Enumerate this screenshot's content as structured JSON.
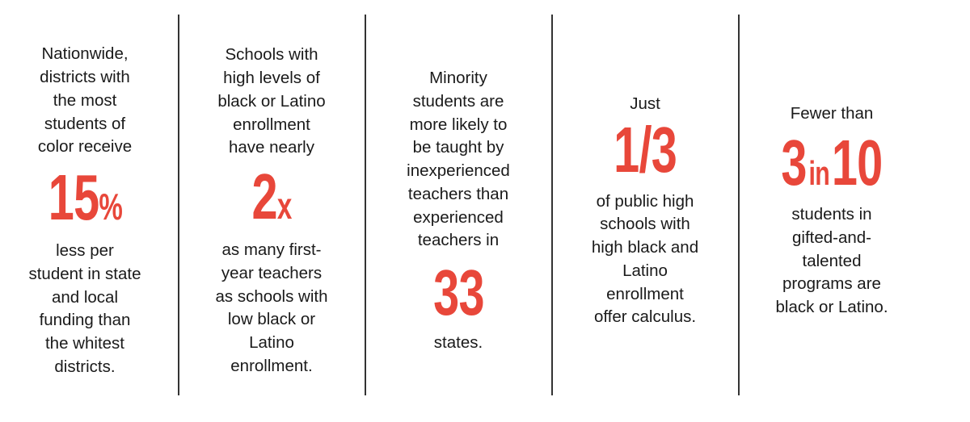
{
  "colors": {
    "accent": "#e8473a",
    "text": "#1a1a1a",
    "divider": "#333333"
  },
  "panels": [
    {
      "lead": "Nationwide,\ndistricts with\nthe most\nstudents of\ncolor receive",
      "stat": "15",
      "stat_suffix": "%",
      "follow": "less per\nstudent in state\nand local\nfunding than\nthe whitest\ndistricts."
    },
    {
      "lead": "Schools with\nhigh levels of\nblack or Latino\nenrollment\nhave nearly",
      "stat": "2",
      "stat_suffix": "x",
      "follow": "as many first-\nyear teachers\nas schools with\nlow black or\nLatino\nenrollment."
    },
    {
      "lead": "Minority\nstudents are\nmore likely to\nbe taught by\ninexperienced\nteachers than\nexperienced\nteachers in",
      "stat": "33",
      "follow": "states."
    },
    {
      "lead": "Just",
      "stat": "1/3",
      "follow": "of public high\nschools with\nhigh black and\nLatino\nenrollment\noffer calculus."
    },
    {
      "lead": "Fewer than",
      "stat_a": "3",
      "stat_mid": "in",
      "stat_b": "10",
      "follow": "students in\ngifted-and-\ntalented\nprograms are\nblack or Latino."
    }
  ]
}
